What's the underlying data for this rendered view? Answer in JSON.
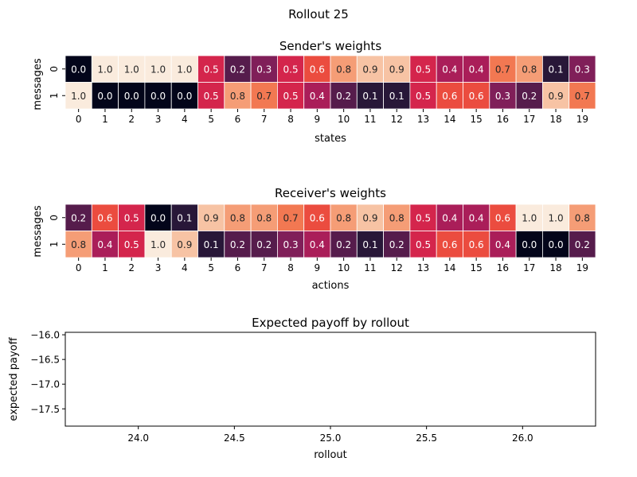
{
  "figure": {
    "suptitle": "Rollout 25"
  },
  "chart_data": [
    {
      "type": "heatmap",
      "title": "Sender's weights",
      "xlabel": "states",
      "ylabel": "messages",
      "x_ticks": [
        "0",
        "1",
        "2",
        "3",
        "4",
        "5",
        "6",
        "7",
        "8",
        "9",
        "10",
        "11",
        "12",
        "13",
        "14",
        "15",
        "16",
        "17",
        "18",
        "19"
      ],
      "y_ticks": [
        "0",
        "1"
      ],
      "values": [
        [
          0.0,
          1.0,
          1.0,
          1.0,
          1.0,
          0.5,
          0.2,
          0.3,
          0.5,
          0.6,
          0.8,
          0.9,
          0.9,
          0.5,
          0.4,
          0.4,
          0.7,
          0.8,
          0.1,
          0.3
        ],
        [
          1.0,
          0.0,
          0.0,
          0.0,
          0.0,
          0.5,
          0.8,
          0.7,
          0.5,
          0.4,
          0.2,
          0.1,
          0.1,
          0.5,
          0.6,
          0.6,
          0.3,
          0.2,
          0.9,
          0.7
        ]
      ],
      "value_range": [
        0,
        1
      ],
      "colormap": "rocket"
    },
    {
      "type": "heatmap",
      "title": "Receiver's weights",
      "xlabel": "actions",
      "ylabel": "messages",
      "x_ticks": [
        "0",
        "1",
        "2",
        "3",
        "4",
        "5",
        "6",
        "7",
        "8",
        "9",
        "10",
        "11",
        "12",
        "13",
        "14",
        "15",
        "16",
        "17",
        "18",
        "19"
      ],
      "y_ticks": [
        "0",
        "1"
      ],
      "values": [
        [
          0.2,
          0.6,
          0.5,
          0.0,
          0.1,
          0.9,
          0.8,
          0.8,
          0.7,
          0.6,
          0.8,
          0.9,
          0.8,
          0.5,
          0.4,
          0.4,
          0.6,
          1.0,
          1.0,
          0.8
        ],
        [
          0.8,
          0.4,
          0.5,
          1.0,
          0.9,
          0.1,
          0.2,
          0.2,
          0.3,
          0.4,
          0.2,
          0.1,
          0.2,
          0.5,
          0.6,
          0.6,
          0.4,
          0.0,
          0.0,
          0.2
        ]
      ],
      "value_range": [
        0,
        1
      ],
      "colormap": "rocket"
    },
    {
      "type": "line",
      "title": "Expected payoff by rollout",
      "xlabel": "rollout",
      "ylabel": "expected payoff",
      "x": [],
      "series": [
        {
          "values": []
        }
      ],
      "xlim": [
        23.62,
        26.38
      ],
      "ylim": [
        -17.85,
        -15.95
      ],
      "x_ticks": [
        "24.0",
        "24.5",
        "25.0",
        "25.5",
        "26.0"
      ],
      "y_ticks": [
        "-16.0",
        "-16.5",
        "-17.0",
        "-17.5"
      ],
      "grid": false
    }
  ]
}
